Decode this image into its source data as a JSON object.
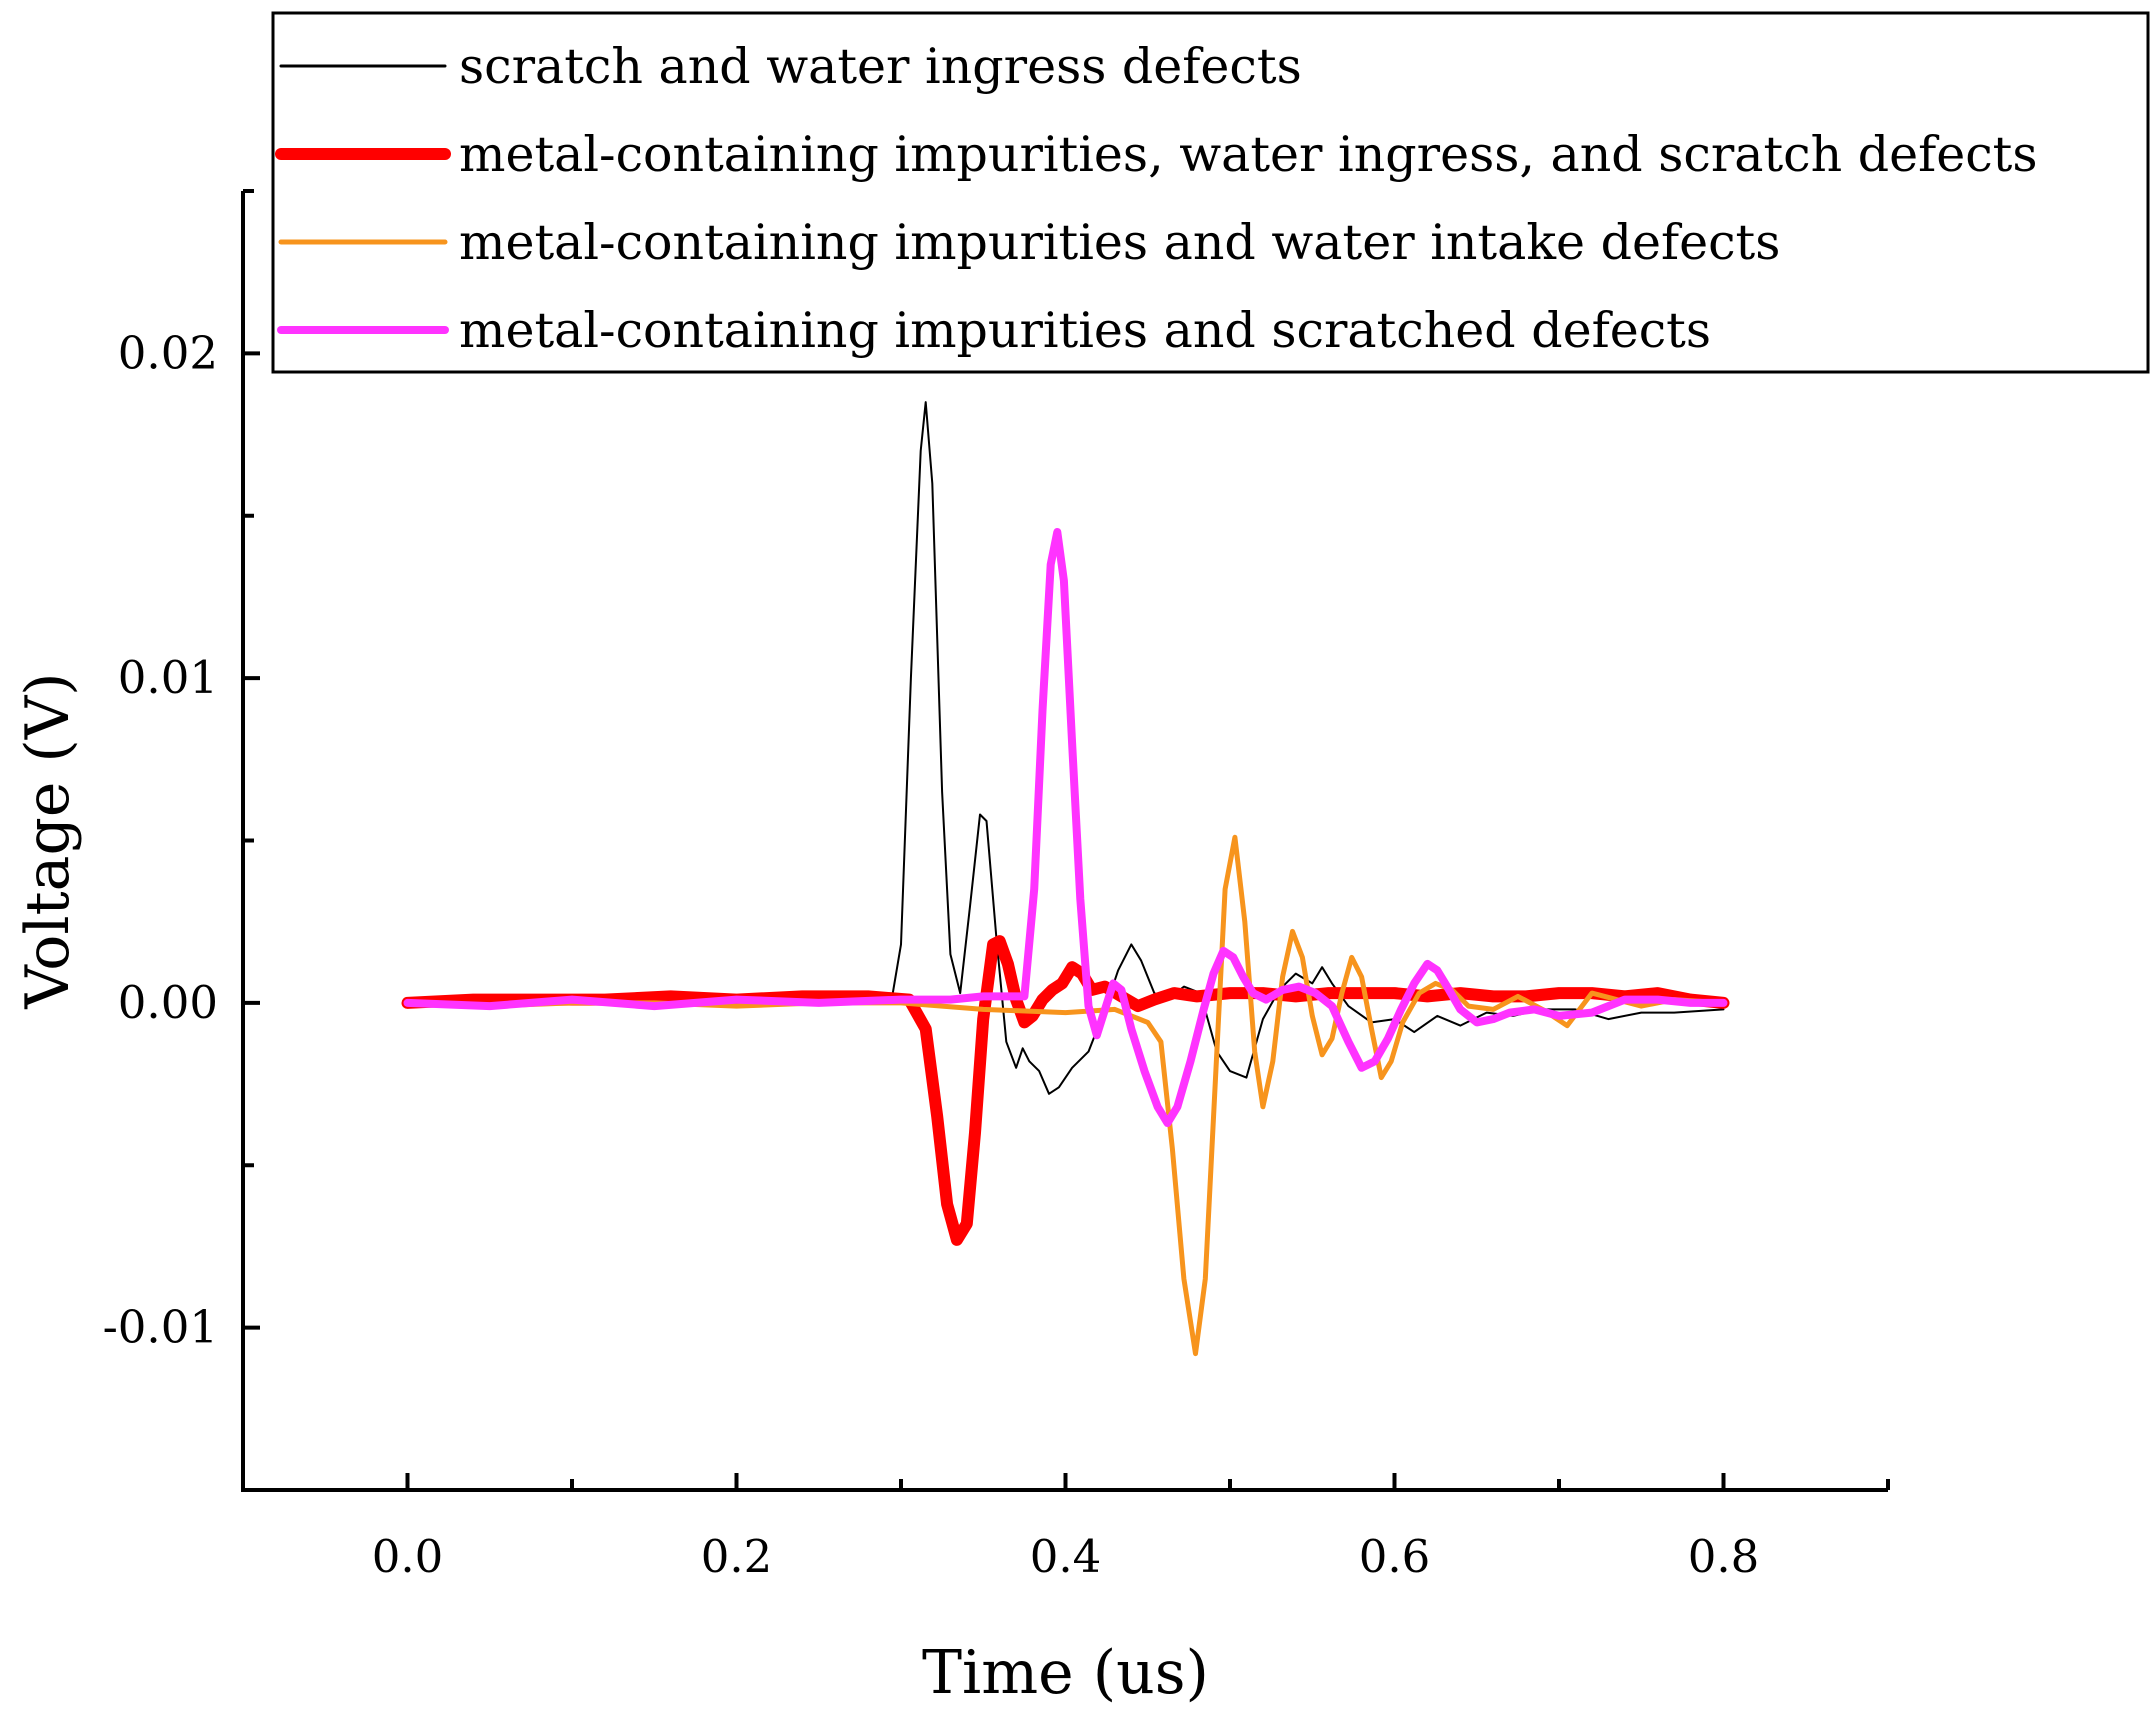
{
  "chart_data": {
    "type": "line",
    "title": "",
    "xlabel": "Time (us)",
    "ylabel": "Voltage (V)",
    "xlim": [
      -0.1,
      0.9
    ],
    "ylim": [
      -0.015,
      0.025
    ],
    "xticks": [
      0.0,
      0.2,
      0.4,
      0.6,
      0.8
    ],
    "xtick_labels": [
      "0.0",
      "0.2",
      "0.4",
      "0.6",
      "0.8"
    ],
    "yticks": [
      -0.01,
      0.0,
      0.01,
      0.02
    ],
    "ytick_labels": [
      "-0.01",
      "0.00",
      "0.01",
      "0.02"
    ],
    "x_minor_step": 0.1,
    "y_minor_step": 0.005,
    "grid": false,
    "legend_position": "top-right",
    "series": [
      {
        "name": "scratch and water ingress defects",
        "color": "#000000",
        "line_width": 2,
        "points": [
          [
            0.0,
            0.0
          ],
          [
            0.05,
            0.0001
          ],
          [
            0.1,
            0.0
          ],
          [
            0.15,
            -0.0001
          ],
          [
            0.2,
            0.0
          ],
          [
            0.25,
            0.0
          ],
          [
            0.28,
            0.0
          ],
          [
            0.295,
            0.0003
          ],
          [
            0.3,
            0.0018
          ],
          [
            0.306,
            0.01
          ],
          [
            0.312,
            0.017
          ],
          [
            0.315,
            0.0185
          ],
          [
            0.319,
            0.016
          ],
          [
            0.325,
            0.0065
          ],
          [
            0.33,
            0.0015
          ],
          [
            0.336,
            0.0003
          ],
          [
            0.342,
            0.003
          ],
          [
            0.348,
            0.0058
          ],
          [
            0.352,
            0.0056
          ],
          [
            0.358,
            0.002
          ],
          [
            0.364,
            -0.0012
          ],
          [
            0.37,
            -0.002
          ],
          [
            0.374,
            -0.0014
          ],
          [
            0.378,
            -0.0018
          ],
          [
            0.384,
            -0.0021
          ],
          [
            0.39,
            -0.0028
          ],
          [
            0.396,
            -0.0026
          ],
          [
            0.404,
            -0.002
          ],
          [
            0.414,
            -0.0015
          ],
          [
            0.424,
            -0.0002
          ],
          [
            0.432,
            0.001
          ],
          [
            0.44,
            0.0018
          ],
          [
            0.446,
            0.0013
          ],
          [
            0.454,
            0.0003
          ],
          [
            0.462,
            0.0001
          ],
          [
            0.472,
            0.0005
          ],
          [
            0.482,
            0.0003
          ],
          [
            0.492,
            -0.0015
          ],
          [
            0.5,
            -0.0021
          ],
          [
            0.51,
            -0.0023
          ],
          [
            0.52,
            -0.0005
          ],
          [
            0.53,
            0.0004
          ],
          [
            0.54,
            0.0009
          ],
          [
            0.55,
            0.0006
          ],
          [
            0.556,
            0.0011
          ],
          [
            0.562,
            0.0006
          ],
          [
            0.572,
            -0.0001
          ],
          [
            0.586,
            -0.0006
          ],
          [
            0.6,
            -0.0005
          ],
          [
            0.612,
            -0.0009
          ],
          [
            0.626,
            -0.0004
          ],
          [
            0.64,
            -0.0007
          ],
          [
            0.656,
            -0.0003
          ],
          [
            0.672,
            -0.0004
          ],
          [
            0.69,
            -0.0002
          ],
          [
            0.71,
            -0.0002
          ],
          [
            0.73,
            -0.0005
          ],
          [
            0.75,
            -0.0003
          ],
          [
            0.77,
            -0.0003
          ],
          [
            0.8,
            -0.0002
          ]
        ]
      },
      {
        "name": "metal-containing impurities, water ingress, and scratch defects",
        "color": "#ff0000",
        "line_width": 12,
        "points": [
          [
            0.0,
            0.0
          ],
          [
            0.04,
            0.0001
          ],
          [
            0.08,
            0.0001
          ],
          [
            0.12,
            0.0001
          ],
          [
            0.16,
            0.0002
          ],
          [
            0.2,
            0.0001
          ],
          [
            0.24,
            0.0002
          ],
          [
            0.28,
            0.0002
          ],
          [
            0.305,
            0.0001
          ],
          [
            0.315,
            -0.0008
          ],
          [
            0.322,
            -0.0035
          ],
          [
            0.328,
            -0.0062
          ],
          [
            0.334,
            -0.0073
          ],
          [
            0.34,
            -0.0068
          ],
          [
            0.345,
            -0.004
          ],
          [
            0.35,
            -0.0005
          ],
          [
            0.356,
            0.0018
          ],
          [
            0.36,
            0.0019
          ],
          [
            0.365,
            0.0012
          ],
          [
            0.37,
            0.0001
          ],
          [
            0.375,
            -0.0006
          ],
          [
            0.38,
            -0.0004
          ],
          [
            0.386,
            0.0001
          ],
          [
            0.392,
            0.0004
          ],
          [
            0.398,
            0.0006
          ],
          [
            0.404,
            0.0011
          ],
          [
            0.41,
            0.0009
          ],
          [
            0.416,
            0.0004
          ],
          [
            0.424,
            0.0005
          ],
          [
            0.434,
            0.0002
          ],
          [
            0.444,
            -0.0001
          ],
          [
            0.454,
            0.0001
          ],
          [
            0.466,
            0.0003
          ],
          [
            0.48,
            0.0002
          ],
          [
            0.5,
            0.0003
          ],
          [
            0.52,
            0.0003
          ],
          [
            0.54,
            0.0002
          ],
          [
            0.56,
            0.0003
          ],
          [
            0.58,
            0.0003
          ],
          [
            0.6,
            0.0003
          ],
          [
            0.62,
            0.0002
          ],
          [
            0.64,
            0.0003
          ],
          [
            0.66,
            0.0002
          ],
          [
            0.68,
            0.0002
          ],
          [
            0.7,
            0.0003
          ],
          [
            0.72,
            0.0003
          ],
          [
            0.74,
            0.0002
          ],
          [
            0.76,
            0.0003
          ],
          [
            0.78,
            0.0001
          ],
          [
            0.8,
            0.0
          ]
        ]
      },
      {
        "name": "metal-containing impurities and water intake defects",
        "color": "#f7941d",
        "line_width": 5,
        "points": [
          [
            0.0,
            0.0
          ],
          [
            0.05,
            -0.0001
          ],
          [
            0.1,
            0.0
          ],
          [
            0.15,
            0.0
          ],
          [
            0.2,
            -0.0001
          ],
          [
            0.25,
            0.0
          ],
          [
            0.3,
            0.0
          ],
          [
            0.35,
            -0.0002
          ],
          [
            0.4,
            -0.0003
          ],
          [
            0.43,
            -0.0002
          ],
          [
            0.45,
            -0.0006
          ],
          [
            0.458,
            -0.0012
          ],
          [
            0.465,
            -0.0045
          ],
          [
            0.472,
            -0.0085
          ],
          [
            0.479,
            -0.0108
          ],
          [
            0.485,
            -0.0085
          ],
          [
            0.491,
            -0.0025
          ],
          [
            0.497,
            0.0035
          ],
          [
            0.503,
            0.0051
          ],
          [
            0.509,
            0.0025
          ],
          [
            0.515,
            -0.0015
          ],
          [
            0.52,
            -0.0032
          ],
          [
            0.526,
            -0.0018
          ],
          [
            0.532,
            0.0008
          ],
          [
            0.538,
            0.0022
          ],
          [
            0.544,
            0.0014
          ],
          [
            0.55,
            -0.0004
          ],
          [
            0.556,
            -0.0016
          ],
          [
            0.562,
            -0.0011
          ],
          [
            0.568,
            0.0003
          ],
          [
            0.574,
            0.0014
          ],
          [
            0.58,
            0.0008
          ],
          [
            0.586,
            -0.0008
          ],
          [
            0.592,
            -0.0023
          ],
          [
            0.598,
            -0.0018
          ],
          [
            0.605,
            -0.0006
          ],
          [
            0.615,
            0.0003
          ],
          [
            0.625,
            0.0006
          ],
          [
            0.635,
            0.0004
          ],
          [
            0.645,
            -0.0001
          ],
          [
            0.66,
            -0.0002
          ],
          [
            0.675,
            0.0002
          ],
          [
            0.69,
            -0.0002
          ],
          [
            0.705,
            -0.0007
          ],
          [
            0.72,
            0.0003
          ],
          [
            0.735,
            0.0001
          ],
          [
            0.75,
            -0.0001
          ],
          [
            0.77,
            0.0001
          ],
          [
            0.8,
            0.0
          ]
        ]
      },
      {
        "name": "metal-containing impurities and scratched defects",
        "color": "#ff33ff",
        "line_width": 8,
        "points": [
          [
            0.0,
            0.0
          ],
          [
            0.05,
            -0.0001
          ],
          [
            0.1,
            0.0001
          ],
          [
            0.15,
            -0.0001
          ],
          [
            0.2,
            0.0001
          ],
          [
            0.25,
            0.0
          ],
          [
            0.3,
            0.0001
          ],
          [
            0.33,
            0.0001
          ],
          [
            0.35,
            0.0002
          ],
          [
            0.365,
            0.0002
          ],
          [
            0.375,
            0.0002
          ],
          [
            0.381,
            0.0035
          ],
          [
            0.386,
            0.009
          ],
          [
            0.391,
            0.0135
          ],
          [
            0.395,
            0.0145
          ],
          [
            0.399,
            0.013
          ],
          [
            0.404,
            0.008
          ],
          [
            0.409,
            0.0032
          ],
          [
            0.414,
            -0.0001
          ],
          [
            0.419,
            -0.001
          ],
          [
            0.424,
            -0.0002
          ],
          [
            0.429,
            0.0006
          ],
          [
            0.434,
            0.0004
          ],
          [
            0.44,
            -0.0008
          ],
          [
            0.448,
            -0.0021
          ],
          [
            0.456,
            -0.0032
          ],
          [
            0.462,
            -0.0037
          ],
          [
            0.468,
            -0.0032
          ],
          [
            0.476,
            -0.0018
          ],
          [
            0.484,
            -0.0002
          ],
          [
            0.49,
            0.0009
          ],
          [
            0.496,
            0.0016
          ],
          [
            0.502,
            0.0014
          ],
          [
            0.508,
            0.0008
          ],
          [
            0.514,
            0.0003
          ],
          [
            0.522,
            0.0001
          ],
          [
            0.532,
            0.0004
          ],
          [
            0.542,
            0.0005
          ],
          [
            0.552,
            0.0003
          ],
          [
            0.562,
            -0.0001
          ],
          [
            0.572,
            -0.0012
          ],
          [
            0.58,
            -0.002
          ],
          [
            0.588,
            -0.0018
          ],
          [
            0.596,
            -0.0011
          ],
          [
            0.604,
            -0.0002
          ],
          [
            0.612,
            0.0006
          ],
          [
            0.62,
            0.0012
          ],
          [
            0.626,
            0.001
          ],
          [
            0.632,
            0.0005
          ],
          [
            0.64,
            -0.0002
          ],
          [
            0.65,
            -0.0006
          ],
          [
            0.66,
            -0.0005
          ],
          [
            0.67,
            -0.0003
          ],
          [
            0.685,
            -0.0002
          ],
          [
            0.7,
            -0.0004
          ],
          [
            0.72,
            -0.0003
          ],
          [
            0.74,
            0.0001
          ],
          [
            0.76,
            0.0001
          ],
          [
            0.78,
            0.0
          ],
          [
            0.8,
            0.0
          ]
        ]
      }
    ]
  }
}
